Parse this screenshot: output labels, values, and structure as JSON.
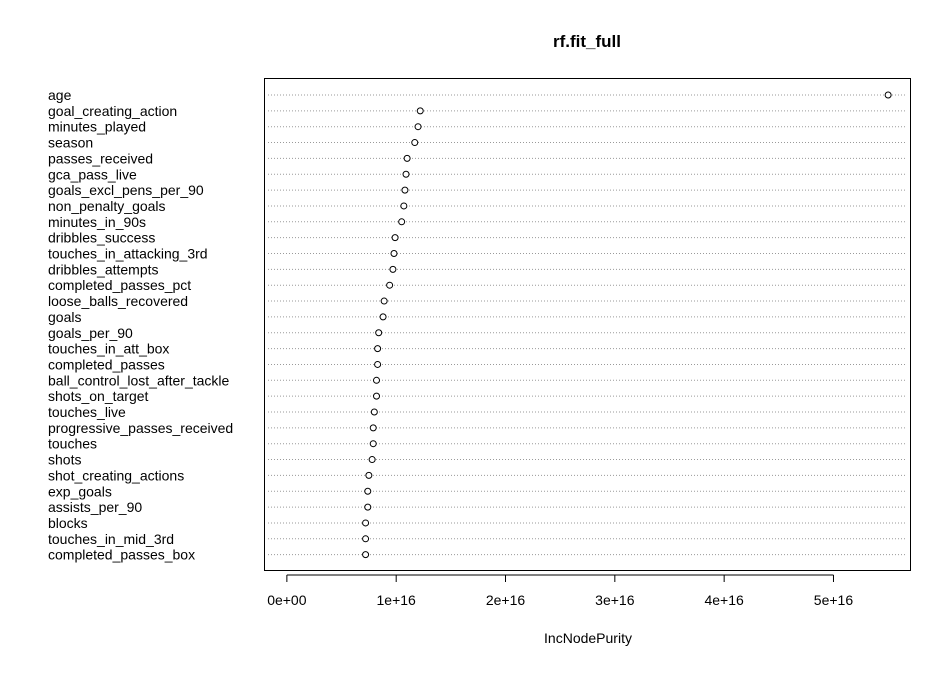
{
  "chart_data": {
    "type": "scatter",
    "title": "rf.fit_full",
    "xlabel": "IncNodePurity",
    "ylabel": "",
    "xlim": [
      -2000000000000000.0,
      5.7e+16
    ],
    "xticks": [
      0,
      1e+16,
      2e+16,
      3e+16,
      4e+16,
      5e+16
    ],
    "xtick_labels": [
      "0e+00",
      "1e+16",
      "2e+16",
      "3e+16",
      "4e+16",
      "5e+16"
    ],
    "grid": "horizontal dotted",
    "marker": "open circle",
    "categories": [
      "age",
      "goal_creating_action",
      "minutes_played",
      "season",
      "passes_received",
      "gca_pass_live",
      "goals_excl_pens_per_90",
      "non_penalty_goals",
      "minutes_in_90s",
      "dribbles_success",
      "touches_in_attacking_3rd",
      "dribbles_attempts",
      "completed_passes_pct",
      "loose_balls_recovered",
      "goals",
      "goals_per_90",
      "touches_in_att_box",
      "completed_passes",
      "ball_control_lost_after_tackle",
      "shots_on_target",
      "touches_live",
      "progressive_passes_received",
      "touches",
      "shots",
      "shot_creating_actions",
      "exp_goals",
      "assists_per_90",
      "blocks",
      "touches_in_mid_3rd",
      "completed_passes_box"
    ],
    "values": [
      5.5e+16,
      1.22e+16,
      1.2e+16,
      1.17e+16,
      1.1e+16,
      1.09e+16,
      1.08e+16,
      1.07e+16,
      1.05e+16,
      9900000000000000.0,
      9800000000000000.0,
      9700000000000000.0,
      9400000000000000.0,
      8900000000000000.0,
      8800000000000000.0,
      8400000000000000.0,
      8300000000000000.0,
      8300000000000000.0,
      8200000000000000.0,
      8200000000000000.0,
      8000000000000000.0,
      7900000000000000.0,
      7900000000000000.0,
      7800000000000000.0,
      7500000000000000.0,
      7400000000000000.0,
      7400000000000000.0,
      7200000000000000.0,
      7200000000000000.0,
      7200000000000000.0
    ]
  }
}
